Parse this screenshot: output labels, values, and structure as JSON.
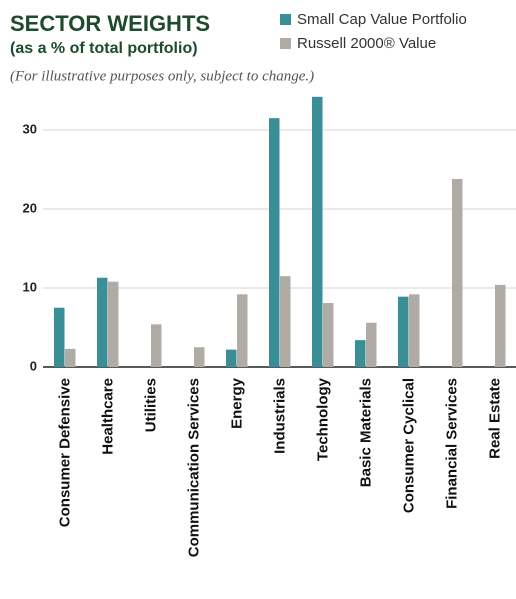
{
  "chart_data": {
    "type": "bar",
    "title": "SECTOR WEIGHTS",
    "subtitle": "(as a % of total portfolio)",
    "note": "(For illustrative purposes only, subject to change.)",
    "categories": [
      "Consumer Defensive",
      "Healthcare",
      "Utilities",
      "Communication Services",
      "Energy",
      "Industrials",
      "Technology",
      "Basic Materials",
      "Consumer Cyclical",
      "Financial Services",
      "Real Estate"
    ],
    "series": [
      {
        "name": "Small Cap Value Portfolio",
        "color": "#3a8e95",
        "values": [
          7.5,
          11.3,
          0,
          0,
          2.2,
          31.5,
          34.2,
          3.4,
          8.9,
          0,
          0
        ]
      },
      {
        "name": "Russell 2000® Value",
        "color": "#b1aba5",
        "values": [
          2.3,
          10.8,
          5.4,
          2.5,
          9.2,
          11.5,
          8.1,
          5.6,
          9.2,
          23.8,
          10.4
        ]
      }
    ],
    "ylim": [
      0,
      35
    ],
    "yticks": [
      0,
      10,
      20,
      30
    ],
    "grid": true
  }
}
